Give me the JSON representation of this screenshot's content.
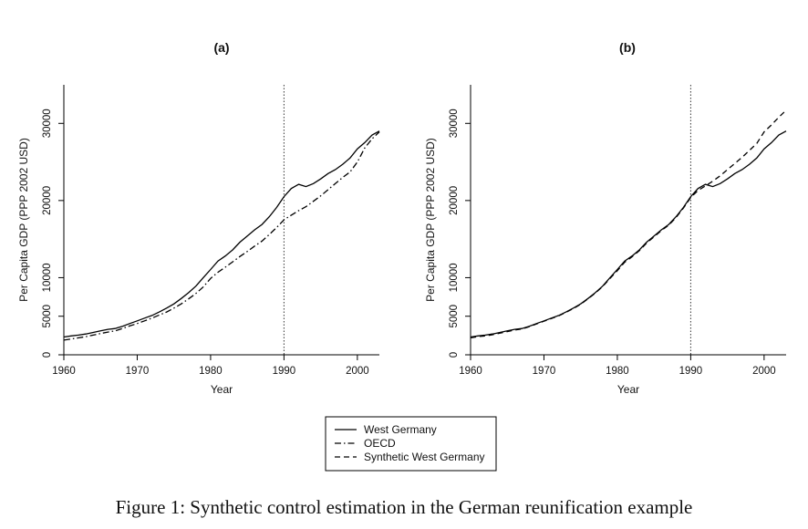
{
  "caption": "Figure 1: Synthetic control estimation in the German reunification example",
  "legend": {
    "items": [
      {
        "label": "West Germany",
        "dash": "solid"
      },
      {
        "label": "OECD",
        "dash": "dashdot"
      },
      {
        "label": "Synthetic West Germany",
        "dash": "dashed"
      }
    ]
  },
  "chart_data": [
    {
      "type": "line",
      "title": "(a)",
      "xlabel": "Year",
      "ylabel": "Per Capita GDP (PPP 2002 USD)",
      "xlim": [
        1960,
        2003
      ],
      "ylim": [
        0,
        35000
      ],
      "xticks": [
        1960,
        1970,
        1980,
        1990,
        2000
      ],
      "yticks": [
        0,
        5000,
        10000,
        20000,
        30000
      ],
      "vline": 1990,
      "x": [
        1960,
        1961,
        1962,
        1963,
        1964,
        1965,
        1966,
        1967,
        1968,
        1969,
        1970,
        1971,
        1972,
        1973,
        1974,
        1975,
        1976,
        1977,
        1978,
        1979,
        1980,
        1981,
        1982,
        1983,
        1984,
        1985,
        1986,
        1987,
        1988,
        1989,
        1990,
        1991,
        1992,
        1993,
        1994,
        1995,
        1996,
        1997,
        1998,
        1999,
        2000,
        2001,
        2002,
        2003
      ],
      "series": [
        {
          "name": "West Germany",
          "dash": "solid",
          "values": [
            2300,
            2450,
            2550,
            2700,
            2900,
            3100,
            3300,
            3400,
            3700,
            4050,
            4400,
            4750,
            5100,
            5550,
            6050,
            6600,
            7300,
            8050,
            8900,
            10000,
            11050,
            12150,
            12800,
            13600,
            14600,
            15400,
            16200,
            16900,
            17900,
            19100,
            20500,
            21550,
            22100,
            21800,
            22200,
            22800,
            23500,
            24000,
            24700,
            25500,
            26700,
            27500,
            28500,
            29000
          ]
        },
        {
          "name": "OECD",
          "dash": "dashdot",
          "values": [
            1900,
            2050,
            2200,
            2350,
            2550,
            2750,
            2950,
            3100,
            3400,
            3750,
            4050,
            4400,
            4750,
            5150,
            5550,
            6050,
            6600,
            7250,
            7950,
            8800,
            9900,
            10700,
            11350,
            12050,
            12750,
            13400,
            14100,
            14750,
            15600,
            16500,
            17500,
            18100,
            18700,
            19200,
            19900,
            20600,
            21400,
            22200,
            23000,
            23700,
            25000,
            26800,
            28000,
            28900
          ]
        }
      ]
    },
    {
      "type": "line",
      "title": "(b)",
      "xlabel": "Year",
      "ylabel": "Per Capita GDP (PPP 2002 USD)",
      "xlim": [
        1960,
        2003
      ],
      "ylim": [
        0,
        35000
      ],
      "xticks": [
        1960,
        1970,
        1980,
        1990,
        2000
      ],
      "yticks": [
        0,
        5000,
        10000,
        20000,
        30000
      ],
      "vline": 1990,
      "x": [
        1960,
        1961,
        1962,
        1963,
        1964,
        1965,
        1966,
        1967,
        1968,
        1969,
        1970,
        1971,
        1972,
        1973,
        1974,
        1975,
        1976,
        1977,
        1978,
        1979,
        1980,
        1981,
        1982,
        1983,
        1984,
        1985,
        1986,
        1987,
        1988,
        1989,
        1990,
        1991,
        1992,
        1993,
        1994,
        1995,
        1996,
        1997,
        1998,
        1999,
        2000,
        2001,
        2002,
        2003
      ],
      "series": [
        {
          "name": "West Germany",
          "dash": "solid",
          "values": [
            2300,
            2450,
            2550,
            2700,
            2900,
            3100,
            3300,
            3400,
            3700,
            4050,
            4400,
            4750,
            5100,
            5550,
            6050,
            6600,
            7300,
            8050,
            8900,
            10000,
            11050,
            12150,
            12800,
            13600,
            14600,
            15400,
            16200,
            16900,
            17900,
            19100,
            20500,
            21550,
            22100,
            21800,
            22200,
            22800,
            23500,
            24000,
            24700,
            25500,
            26700,
            27500,
            28500,
            29000
          ]
        },
        {
          "name": "Synthetic West Germany",
          "dash": "dashed",
          "values": [
            2200,
            2350,
            2450,
            2600,
            2800,
            3000,
            3200,
            3350,
            3650,
            4000,
            4350,
            4700,
            5050,
            5500,
            6000,
            6550,
            7250,
            8000,
            8850,
            9900,
            10900,
            12000,
            12700,
            13500,
            14500,
            15300,
            16100,
            16800,
            17800,
            19000,
            20400,
            21300,
            21900,
            22500,
            23200,
            24000,
            24800,
            25600,
            26500,
            27400,
            28900,
            29800,
            30800,
            31700
          ]
        }
      ]
    }
  ]
}
